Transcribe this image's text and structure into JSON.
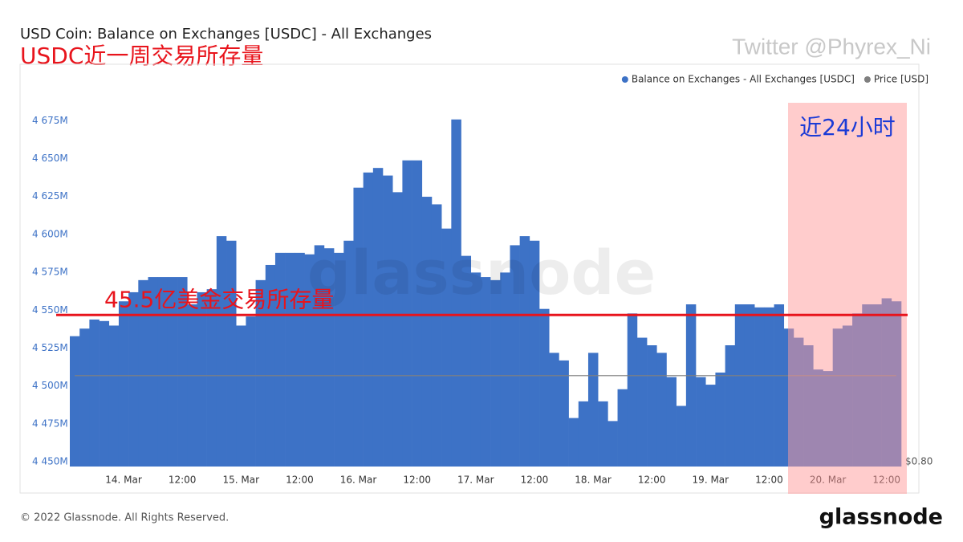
{
  "chart_data": {
    "type": "bar",
    "title": "USD Coin: Balance on Exchanges [USDC] - All Exchanges",
    "subtitle": "USDC近一周交易所存量",
    "watermark": "Twitter @Phyrex_Ni",
    "background_watermark": "glassnode",
    "highlight_label": "近24小时",
    "reference_line": {
      "value": 4550,
      "label": "45.5亿美金交易所存量",
      "color": "#e8141c"
    },
    "categories": [
      null,
      null,
      null,
      null,
      null,
      "14. Mar",
      null,
      null,
      null,
      null,
      null,
      "12:00",
      null,
      null,
      null,
      null,
      null,
      "15. Mar",
      null,
      null,
      null,
      null,
      null,
      "12:00",
      null,
      null,
      null,
      null,
      null,
      "16. Mar",
      null,
      null,
      null,
      null,
      null,
      "12:00",
      null,
      null,
      null,
      null,
      null,
      "17. Mar",
      null,
      null,
      null,
      null,
      null,
      "12:00",
      null,
      null,
      null,
      null,
      null,
      "18. Mar",
      null,
      null,
      null,
      null,
      null,
      "12:00",
      null,
      null,
      null,
      null,
      null,
      "19. Mar",
      null,
      null,
      null,
      null,
      null,
      "12:00",
      null,
      null,
      null,
      null,
      null,
      "20. Mar",
      null,
      null,
      null,
      null,
      null,
      "12:00",
      null
    ],
    "series": [
      {
        "name": "Balance on Exchanges - All Exchanges [USDC]",
        "color": "#3d72c6",
        "values": [
          4536,
          4541,
          4547,
          4546,
          4543,
          4559,
          4565,
          4573,
          4575,
          4575,
          4575,
          4575,
          4557,
          4565,
          4567,
          4602,
          4599,
          4543,
          4549,
          4573,
          4583,
          4591,
          4591,
          4591,
          4590,
          4596,
          4594,
          4591,
          4599,
          4634,
          4644,
          4647,
          4642,
          4631,
          4652,
          4652,
          4628,
          4623,
          4607,
          4679,
          4589,
          4578,
          4575,
          4573,
          4578,
          4596,
          4602,
          4599,
          4554,
          4525,
          4520,
          4482,
          4493,
          4525,
          4493,
          4480,
          4501,
          4551,
          4535,
          4530,
          4525,
          4509,
          4490,
          4557,
          4509,
          4504,
          4512,
          4530,
          4557,
          4557,
          4555,
          4555,
          4557,
          4541,
          4535,
          4530,
          4514,
          4513,
          4541,
          4543,
          4551,
          4557,
          4557,
          4561,
          4559
        ]
      },
      {
        "name": "Price [USD]",
        "color": "#7f7f7f",
        "axis": "y2",
        "values": [
          1,
          1,
          1,
          1,
          1,
          1,
          1,
          1,
          1,
          1,
          1,
          1,
          1,
          1,
          1,
          1,
          1,
          1,
          1,
          1,
          1,
          1,
          1,
          1,
          1,
          1,
          1,
          1,
          1,
          1,
          1,
          1,
          1,
          1,
          1,
          1,
          1,
          1,
          1,
          1,
          1,
          1,
          1,
          1,
          1,
          1,
          1,
          1,
          1,
          1,
          1,
          1,
          1,
          1,
          1,
          1,
          1,
          1,
          1,
          1,
          1,
          1,
          1,
          1,
          1,
          1,
          1,
          1,
          1,
          1,
          1,
          1,
          1,
          1,
          1,
          1,
          1,
          1,
          1,
          1,
          1,
          1,
          1,
          1,
          1
        ]
      }
    ],
    "ylim": [
      4450,
      4690
    ],
    "yticks": [
      {
        "value": 4450,
        "label": "4 450M"
      },
      {
        "value": 4475,
        "label": "4 475M"
      },
      {
        "value": 4500,
        "label": "4 500M"
      },
      {
        "value": 4525,
        "label": "4 525M"
      },
      {
        "value": 4550,
        "label": "4 550M"
      },
      {
        "value": 4575,
        "label": "4 575M"
      },
      {
        "value": 4600,
        "label": "4 600M"
      },
      {
        "value": 4625,
        "label": "4 625M"
      },
      {
        "value": 4650,
        "label": "4 650M"
      },
      {
        "value": 4675,
        "label": "4 675M"
      }
    ],
    "y2lim": [
      0.8,
      1.6
    ],
    "y2ticks": [
      {
        "value": 0.8,
        "label": "$0.80"
      }
    ],
    "grid": false,
    "legend": "top-right"
  },
  "footer": {
    "copyright": "© 2022 Glassnode. All Rights Reserved.",
    "logo": "glassnode"
  }
}
